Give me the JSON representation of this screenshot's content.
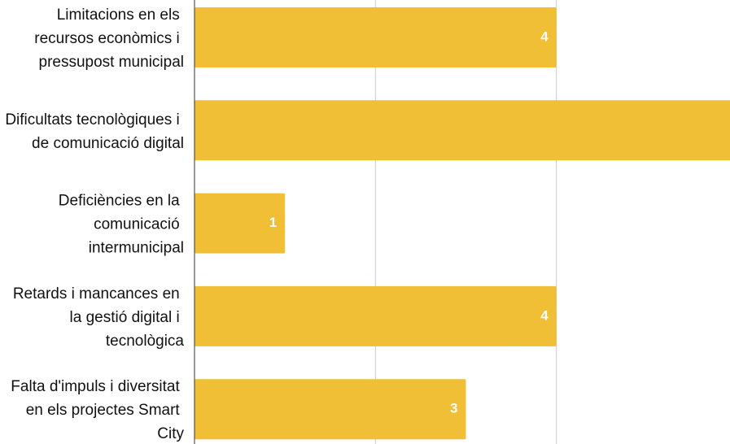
{
  "chart_data": {
    "type": "bar",
    "orientation": "horizontal",
    "categories": [
      "Limitacions en els recursos econòmics i pressupost municipal",
      "Dificultats tecnològiques i de comunicació digital",
      "Deficiències en la comunicació intermunicipal",
      "Retards i mancances en la gestió digital i tecnològica",
      "Falta d'impuls i diversitat en els projectes Smart City"
    ],
    "values": [
      4,
      6,
      1,
      4,
      3
    ],
    "value_labels": [
      "4",
      null,
      "1",
      "4",
      "3"
    ],
    "color": "#f0bf35",
    "xlim": [
      0,
      6
    ],
    "xticks": [
      0,
      2,
      4,
      6
    ],
    "grid": true
  }
}
